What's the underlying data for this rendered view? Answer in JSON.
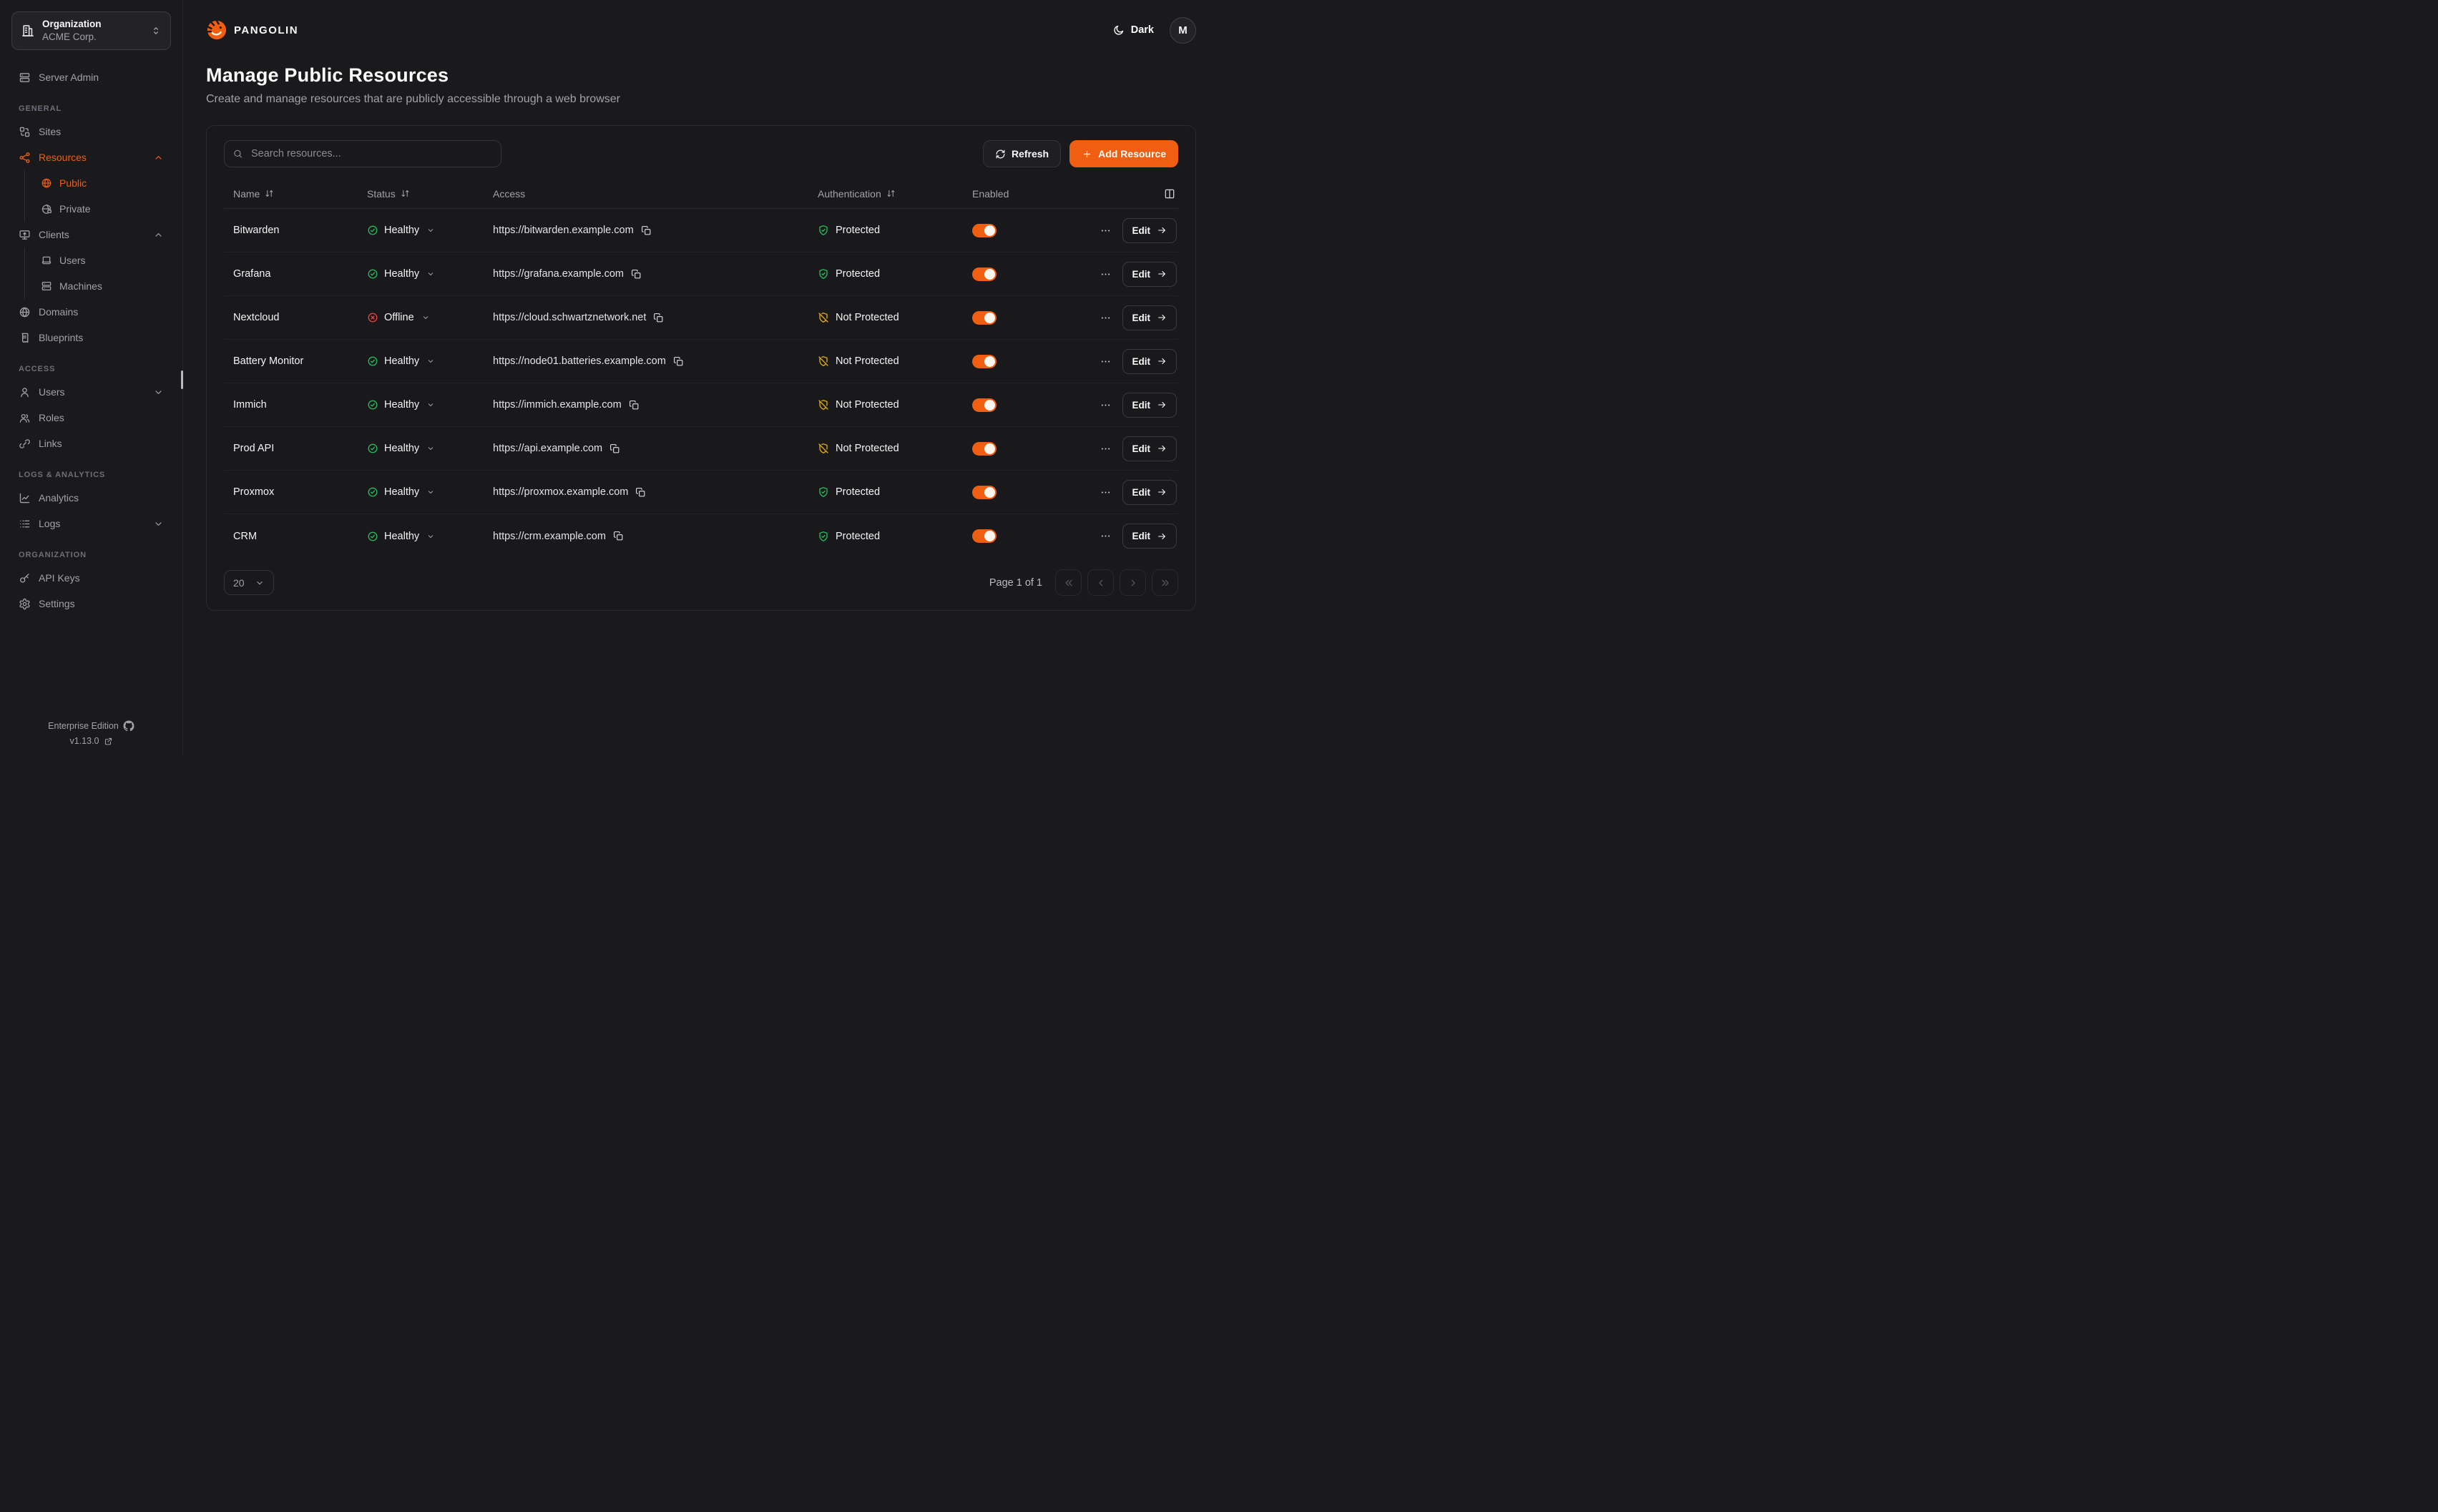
{
  "brand": {
    "name": "PANGOLIN"
  },
  "org_selector": {
    "label": "Organization",
    "value": "ACME Corp."
  },
  "theme": {
    "label": "Dark"
  },
  "user": {
    "initial": "M"
  },
  "sidebar": {
    "top_item": {
      "label": "Server Admin",
      "icon": "server"
    },
    "sections": [
      {
        "label": "GENERAL",
        "items": [
          {
            "label": "Sites",
            "icon": "sites"
          },
          {
            "label": "Resources",
            "icon": "resources",
            "active": true,
            "chevron": "up",
            "children": [
              {
                "label": "Public",
                "icon": "globe",
                "active": true
              },
              {
                "label": "Private",
                "icon": "globe-lock"
              }
            ]
          },
          {
            "label": "Clients",
            "icon": "clients",
            "chevron": "up",
            "children": [
              {
                "label": "Users",
                "icon": "laptop"
              },
              {
                "label": "Machines",
                "icon": "server"
              }
            ]
          },
          {
            "label": "Domains",
            "icon": "globe"
          },
          {
            "label": "Blueprints",
            "icon": "receipt"
          }
        ]
      },
      {
        "label": "ACCESS",
        "items": [
          {
            "label": "Users",
            "icon": "user",
            "chevron": "down"
          },
          {
            "label": "Roles",
            "icon": "users"
          },
          {
            "label": "Links",
            "icon": "link"
          }
        ]
      },
      {
        "label": "LOGS & ANALYTICS",
        "items": [
          {
            "label": "Analytics",
            "icon": "chart"
          },
          {
            "label": "Logs",
            "icon": "logs",
            "chevron": "down"
          }
        ]
      },
      {
        "label": "ORGANIZATION",
        "items": [
          {
            "label": "API Keys",
            "icon": "key"
          },
          {
            "label": "Settings",
            "icon": "gear"
          }
        ]
      }
    ],
    "footer": {
      "edition": "Enterprise Edition",
      "version": "v1.13.0"
    }
  },
  "page": {
    "title": "Manage Public Resources",
    "subtitle": "Create and manage resources that are publicly accessible through a web browser"
  },
  "toolbar": {
    "search_placeholder": "Search resources...",
    "refresh_label": "Refresh",
    "add_label": "Add Resource"
  },
  "table": {
    "columns": [
      "Name",
      "Status",
      "Access",
      "Authentication",
      "Enabled"
    ],
    "sortable": [
      true,
      true,
      false,
      true,
      false
    ],
    "edit_label": "Edit",
    "rows": [
      {
        "name": "Bitwarden",
        "status": "Healthy",
        "status_kind": "healthy",
        "access": "https://bitwarden.example.com",
        "auth": "Protected",
        "auth_kind": "protected",
        "enabled": true
      },
      {
        "name": "Grafana",
        "status": "Healthy",
        "status_kind": "healthy",
        "access": "https://grafana.example.com",
        "auth": "Protected",
        "auth_kind": "protected",
        "enabled": true
      },
      {
        "name": "Nextcloud",
        "status": "Offline",
        "status_kind": "offline",
        "access": "https://cloud.schwartznetwork.net",
        "auth": "Not Protected",
        "auth_kind": "not_protected",
        "enabled": true
      },
      {
        "name": "Battery Monitor",
        "status": "Healthy",
        "status_kind": "healthy",
        "access": "https://node01.batteries.example.com",
        "auth": "Not Protected",
        "auth_kind": "not_protected",
        "enabled": true
      },
      {
        "name": "Immich",
        "status": "Healthy",
        "status_kind": "healthy",
        "access": "https://immich.example.com",
        "auth": "Not Protected",
        "auth_kind": "not_protected",
        "enabled": true
      },
      {
        "name": "Prod API",
        "status": "Healthy",
        "status_kind": "healthy",
        "access": "https://api.example.com",
        "auth": "Not Protected",
        "auth_kind": "not_protected",
        "enabled": true
      },
      {
        "name": "Proxmox",
        "status": "Healthy",
        "status_kind": "healthy",
        "access": "https://proxmox.example.com",
        "auth": "Protected",
        "auth_kind": "protected",
        "enabled": true
      },
      {
        "name": "CRM",
        "status": "Healthy",
        "status_kind": "healthy",
        "access": "https://crm.example.com",
        "auth": "Protected",
        "auth_kind": "protected",
        "enabled": true
      }
    ]
  },
  "pagination": {
    "page_size": "20",
    "page_info": "Page 1 of 1"
  },
  "colors": {
    "accent": "#f05e12",
    "healthy": "#22c55e",
    "offline": "#ef4444",
    "protected": "#22c55e",
    "not_protected": "#eab308"
  }
}
